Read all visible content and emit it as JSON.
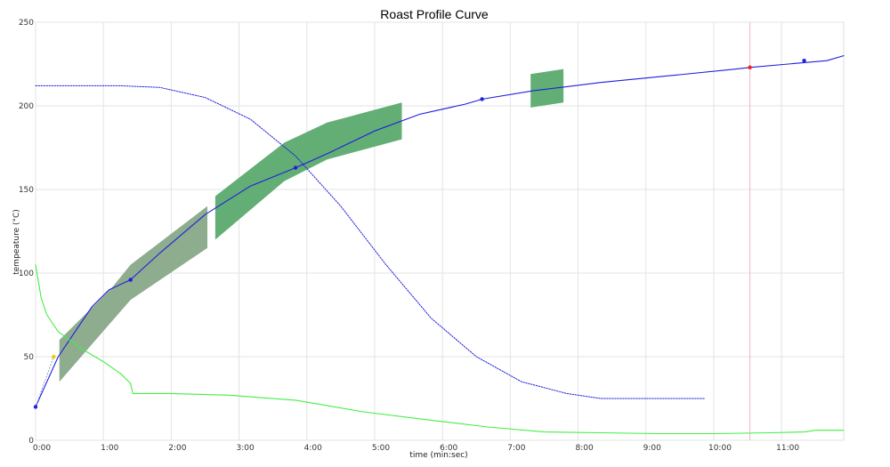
{
  "chart_data": {
    "type": "line",
    "title": "Roast Profile Curve",
    "xlabel": "time (min:sec)",
    "ylabel": "tempeature (°C)",
    "xlim_sec": [
      0,
      715
    ],
    "ylim": [
      0,
      250
    ],
    "grid": true,
    "legend": "none",
    "x_ticks": [
      {
        "value": 0,
        "label": "0:00"
      },
      {
        "value": 60,
        "label": "1:00"
      },
      {
        "value": 120,
        "label": "2:00"
      },
      {
        "value": 180,
        "label": "3:00"
      },
      {
        "value": 240,
        "label": "4:00"
      },
      {
        "value": 300,
        "label": "5:00"
      },
      {
        "value": 360,
        "label": "6:00"
      },
      {
        "value": 420,
        "label": "7:00"
      },
      {
        "value": 480,
        "label": "8:00"
      },
      {
        "value": 540,
        "label": "9:00"
      },
      {
        "value": 600,
        "label": "10:00"
      },
      {
        "value": 660,
        "label": "11:00"
      }
    ],
    "y_ticks": [
      {
        "value": 0,
        "label": "0"
      },
      {
        "value": 50,
        "label": "50"
      },
      {
        "value": 100,
        "label": "100"
      },
      {
        "value": 150,
        "label": "150"
      },
      {
        "value": 200,
        "label": "200"
      },
      {
        "value": 250,
        "label": "250"
      }
    ],
    "series": [
      {
        "style": "solid",
        "color": "#1f1fdd",
        "points": [
          [
            0,
            20
          ],
          [
            10,
            35
          ],
          [
            20,
            50
          ],
          [
            35,
            65
          ],
          [
            50,
            80
          ],
          [
            65,
            90
          ],
          [
            84,
            96
          ],
          [
            110,
            112
          ],
          [
            150,
            135
          ],
          [
            190,
            152
          ],
          [
            230,
            163
          ],
          [
            260,
            172
          ],
          [
            300,
            185
          ],
          [
            340,
            195
          ],
          [
            380,
            201
          ],
          [
            395,
            204
          ],
          [
            440,
            209
          ],
          [
            500,
            214
          ],
          [
            560,
            218
          ],
          [
            620,
            222
          ],
          [
            632,
            223
          ],
          [
            700,
            227
          ],
          [
            715,
            230
          ]
        ]
      },
      {
        "style": "dotted",
        "color": "#1f1fdd",
        "points": [
          [
            0,
            212
          ],
          [
            75,
            212
          ],
          [
            110,
            211
          ],
          [
            150,
            205
          ],
          [
            190,
            192
          ],
          [
            230,
            170
          ],
          [
            270,
            140
          ],
          [
            310,
            105
          ],
          [
            350,
            73
          ],
          [
            390,
            50
          ],
          [
            430,
            35
          ],
          [
            470,
            28
          ],
          [
            500,
            25
          ],
          [
            592,
            25
          ]
        ]
      },
      {
        "style": "solid",
        "color": "#44ee44",
        "points": [
          [
            0,
            105
          ],
          [
            5,
            85
          ],
          [
            10,
            75
          ],
          [
            20,
            65
          ],
          [
            40,
            55
          ],
          [
            60,
            47
          ],
          [
            75,
            40
          ],
          [
            84,
            34
          ],
          [
            86,
            28
          ],
          [
            120,
            28
          ],
          [
            170,
            27
          ],
          [
            230,
            24
          ],
          [
            290,
            17
          ],
          [
            350,
            12
          ],
          [
            400,
            8
          ],
          [
            450,
            5
          ],
          [
            500,
            4.5
          ],
          [
            550,
            4
          ],
          [
            600,
            4
          ],
          [
            650,
            4.5
          ],
          [
            680,
            5
          ],
          [
            690,
            6
          ],
          [
            715,
            6
          ]
        ]
      }
    ],
    "markers": [
      {
        "x": 0,
        "y": 20,
        "color": "#1f1fdd"
      },
      {
        "x": 84,
        "y": 96,
        "color": "#1f1fdd"
      },
      {
        "x": 230,
        "y": 163,
        "color": "#1f1fdd"
      },
      {
        "x": 395,
        "y": 204,
        "color": "#1f1fdd"
      },
      {
        "x": 632,
        "y": 223,
        "color": "#ee2222"
      },
      {
        "x": 680,
        "y": 227,
        "color": "#1f1fdd"
      },
      {
        "x": 16,
        "y": 50,
        "color": "#eecc00"
      }
    ],
    "vertical_line": {
      "x": 632,
      "color": "#f2b8c2"
    },
    "bands": [
      {
        "color": "#88a888",
        "points": [
          [
            21,
            35
          ],
          [
            21,
            60
          ],
          [
            66,
            90
          ],
          [
            84,
            105
          ],
          [
            152,
            140
          ],
          [
            152,
            115
          ],
          [
            84,
            84
          ],
          [
            66,
            70
          ]
        ]
      },
      {
        "color": "#5aaa6e",
        "points": [
          [
            159,
            120
          ],
          [
            159,
            146
          ],
          [
            220,
            178
          ],
          [
            258,
            190
          ],
          [
            324,
            202
          ],
          [
            324,
            180
          ],
          [
            258,
            168
          ],
          [
            220,
            155
          ]
        ]
      },
      {
        "color": "#5aaa6e",
        "points": [
          [
            438,
            199
          ],
          [
            438,
            219
          ],
          [
            467,
            222
          ],
          [
            467,
            202
          ]
        ]
      }
    ],
    "guide_segment": {
      "from": [
        0,
        20
      ],
      "to": [
        16,
        50
      ],
      "color": "#9a9acc"
    }
  }
}
